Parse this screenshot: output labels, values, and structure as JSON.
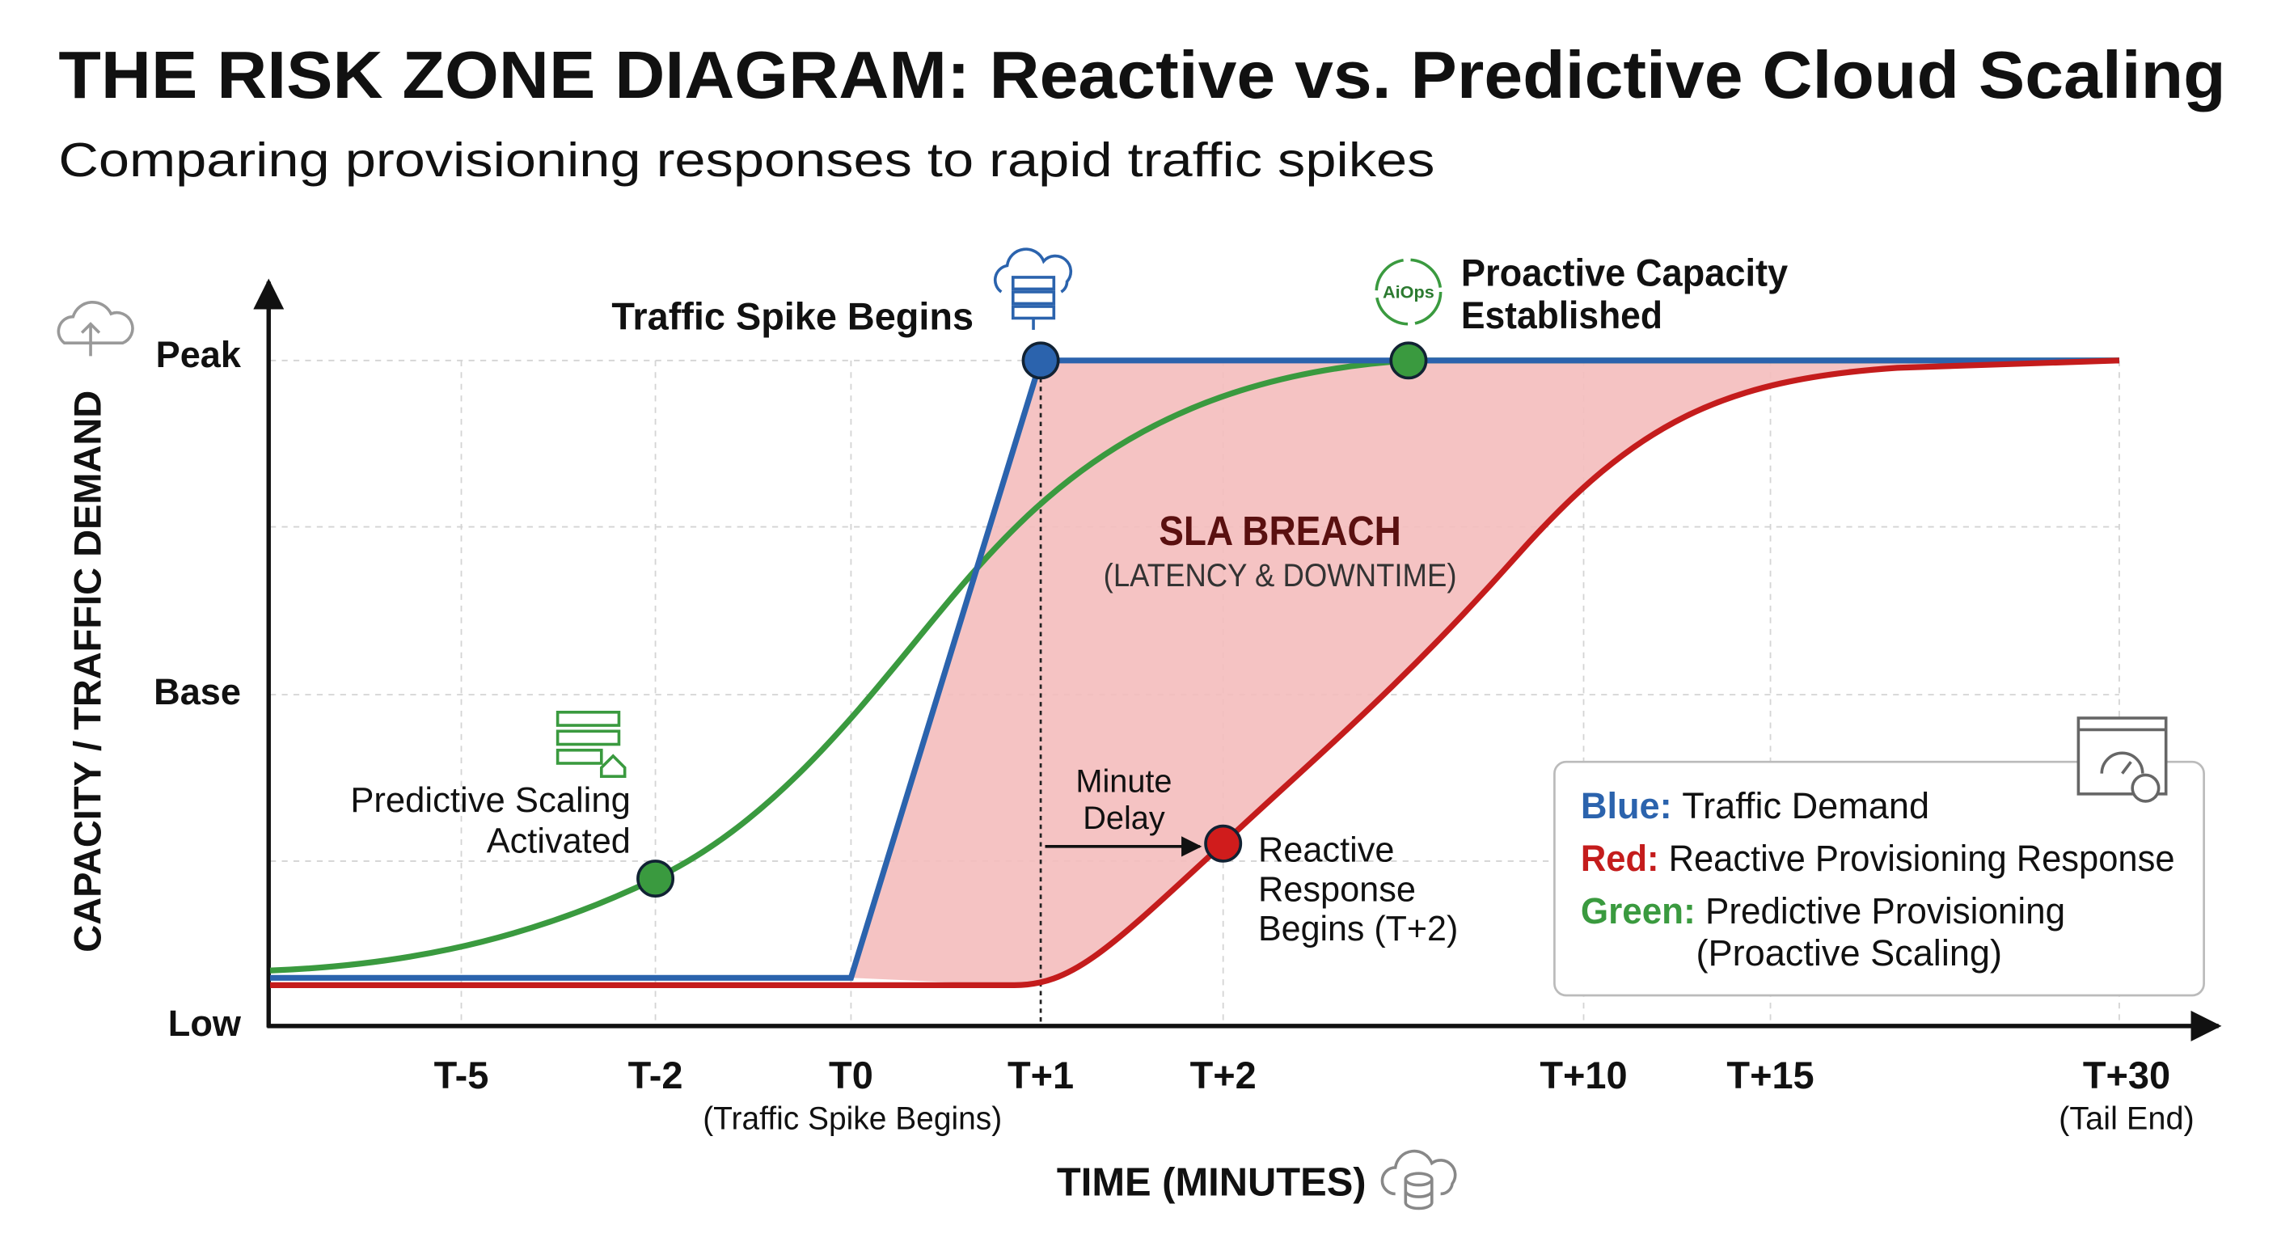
{
  "title": "THE RISK ZONE DIAGRAM: Reactive vs. Predictive Cloud Scaling",
  "subtitle": "Comparing provisioning responses to rapid traffic spikes",
  "y_axis": {
    "label": "CAPACITY / TRAFFIC DEMAND",
    "ticks": [
      "Low",
      "Base",
      "Peak"
    ]
  },
  "x_axis": {
    "label": "TIME (MINUTES)",
    "ticks": [
      "T-5",
      "T-2",
      "T0",
      "T+1",
      "T+2",
      "T+10",
      "T+15",
      "T+30"
    ],
    "tick_notes": [
      "(Traffic Spike Begins)",
      "(Tail End)"
    ]
  },
  "annotations": {
    "spike": "Traffic Spike Begins",
    "proactive": [
      "Proactive Capacity",
      "Established"
    ],
    "aiops_icon": "AiOps",
    "breach": "SLA BREACH",
    "breach_detail": "(LATENCY & DOWNTIME)",
    "predictive": [
      "Predictive Scaling",
      "Activated"
    ],
    "delay": [
      "Minute",
      "Delay"
    ],
    "reactive": [
      "Reactive",
      "Response",
      "Begins (T+2)"
    ]
  },
  "legend": [
    {
      "key": "Blue:",
      "text": [
        "Traffic Demand"
      ]
    },
    {
      "key": "Red:",
      "text": [
        "Reactive Provisioning Response"
      ]
    },
    {
      "key": "Green:",
      "text": [
        "Predictive Provisioning",
        "(Proactive Scaling)"
      ]
    }
  ]
}
